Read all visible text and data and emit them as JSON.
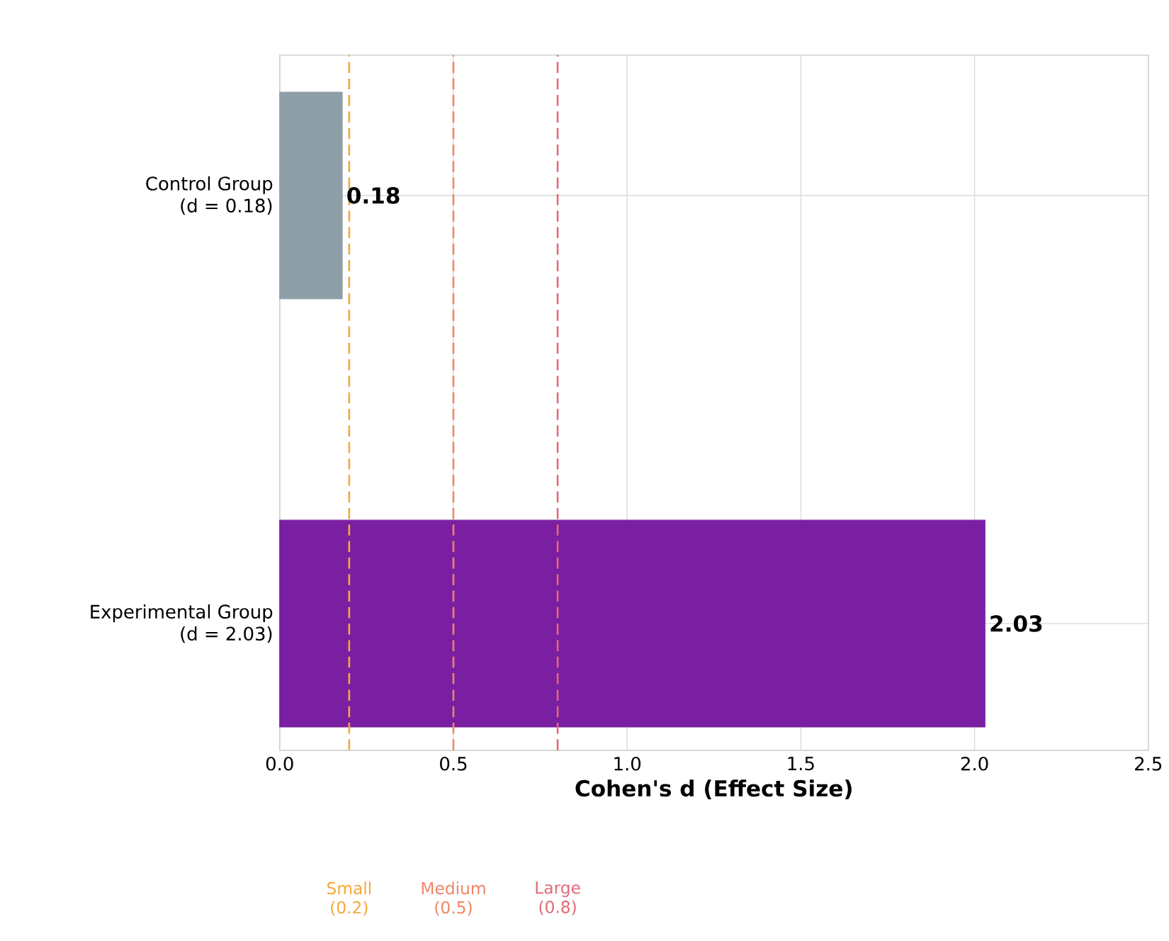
{
  "chart_data": {
    "type": "bar",
    "orientation": "horizontal",
    "xlabel": "Cohen's d (Effect Size)",
    "categories": [
      "Control Group\n(d = 0.18)",
      "Experimental Group\n(d = 2.03)"
    ],
    "values": [
      0.18,
      2.03
    ],
    "colors": [
      "#8e9fa8",
      "#7b1fa2"
    ],
    "xlim": [
      0,
      2.5
    ],
    "xticks": [
      {
        "value": 0,
        "label": "0.0"
      },
      {
        "value": 0.5,
        "label": "0.5"
      },
      {
        "value": 1,
        "label": "1.0"
      },
      {
        "value": 1.5,
        "label": "1.5"
      },
      {
        "value": 2,
        "label": "2.0"
      },
      {
        "value": 2.5,
        "label": "2.5"
      }
    ],
    "ref_lines": [
      {
        "axis": "x",
        "value": 0.2,
        "label": "Small (0.2)",
        "color": "#f5a83a",
        "line_style": "dashed"
      },
      {
        "axis": "x",
        "value": 0.5,
        "label": "Medium (0.5)",
        "color": "#ee8566",
        "line_style": "dashed"
      },
      {
        "axis": "x",
        "value": 0.8,
        "label": "Large (0.8)",
        "color": "#e06b78",
        "line_style": "dashed"
      }
    ],
    "grid": true,
    "data_labels": true
  }
}
